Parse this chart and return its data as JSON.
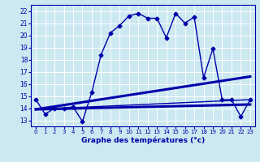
{
  "xlabel": "Graphe des températures (°c)",
  "background_color": "#cce8f0",
  "line_color": "#0000aa",
  "x_ticks": [
    0,
    1,
    2,
    3,
    4,
    5,
    6,
    7,
    8,
    9,
    10,
    11,
    12,
    13,
    14,
    15,
    16,
    17,
    18,
    19,
    20,
    21,
    22,
    23
  ],
  "y_ticks": [
    13,
    14,
    15,
    16,
    17,
    18,
    19,
    20,
    21,
    22
  ],
  "ylim": [
    12.5,
    22.5
  ],
  "xlim": [
    -0.5,
    23.5
  ],
  "series": [
    {
      "x": [
        0,
        1,
        2,
        3,
        4,
        5,
        6,
        7,
        8,
        9,
        10,
        11,
        12,
        13,
        14,
        15,
        16,
        17,
        18,
        19,
        20,
        21,
        22,
        23
      ],
      "y": [
        14.7,
        13.5,
        14.0,
        14.0,
        14.1,
        12.9,
        15.3,
        18.4,
        20.2,
        20.8,
        21.6,
        21.8,
        21.4,
        21.4,
        19.8,
        21.8,
        21.0,
        21.5,
        16.5,
        18.9,
        14.7,
        14.7,
        13.3,
        14.7
      ],
      "marker": "D",
      "markersize": 2.5,
      "linewidth": 1.0
    },
    {
      "x": [
        0,
        23
      ],
      "y": [
        13.9,
        16.6
      ],
      "marker": null,
      "markersize": 0,
      "linewidth": 2.2
    },
    {
      "x": [
        0,
        23
      ],
      "y": [
        13.9,
        14.3
      ],
      "marker": null,
      "markersize": 0,
      "linewidth": 2.2
    },
    {
      "x": [
        0,
        23
      ],
      "y": [
        13.9,
        14.7
      ],
      "marker": null,
      "markersize": 0,
      "linewidth": 1.0
    }
  ]
}
